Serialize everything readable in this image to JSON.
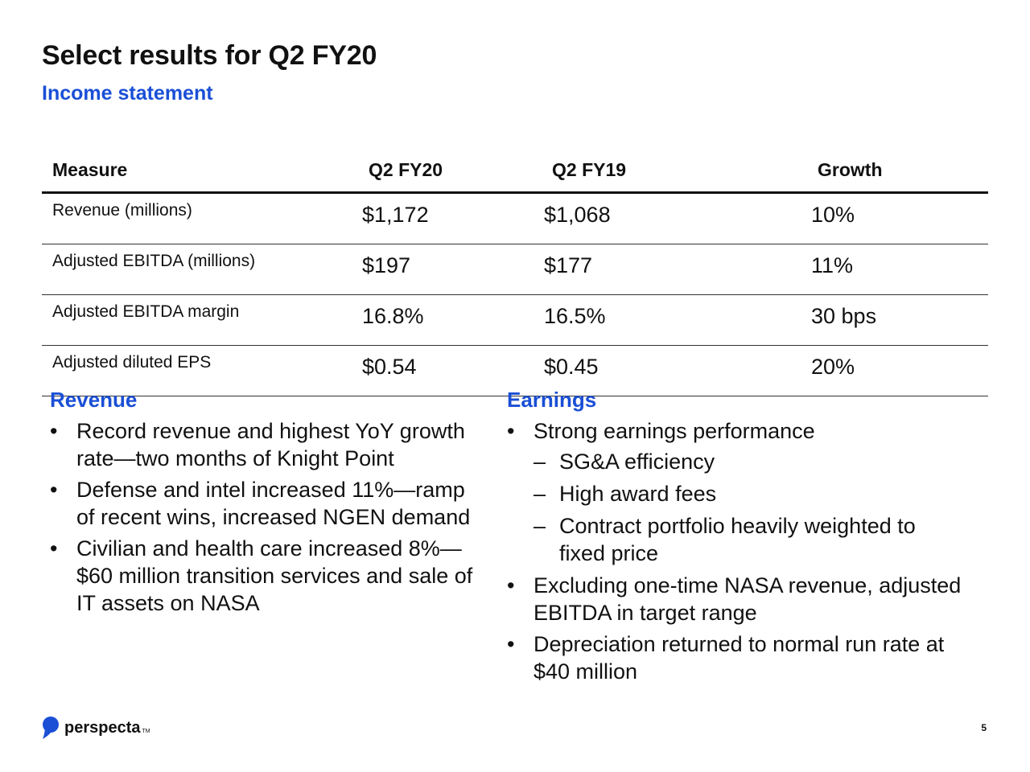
{
  "slide": {
    "title": "Select results for Q2 FY20",
    "subtitle": "Income statement",
    "page_number": "5"
  },
  "colors": {
    "accent_blue": "#1a4fd6",
    "text": "#111111"
  },
  "table": {
    "headers": [
      "Measure",
      "Q2 FY20",
      "Q2 FY19",
      "Growth"
    ],
    "rows": [
      [
        "Revenue (millions)",
        "$1,172",
        "$1,068",
        "10%"
      ],
      [
        "Adjusted EBITDA (millions)",
        "$197",
        "$177",
        "11%"
      ],
      [
        "Adjusted EBITDA margin",
        "16.8%",
        "16.5%",
        "30 bps"
      ],
      [
        "Adjusted diluted EPS",
        "$0.54",
        "$0.45",
        "20%"
      ]
    ]
  },
  "revenue": {
    "heading": "Revenue",
    "bullets": [
      "Record revenue and highest YoY growth rate—two months of Knight Point",
      "Defense and intel increased 11%—ramp of recent wins, increased NGEN demand",
      "Civilian and health care increased 8%—$60 million transition services and sale of IT assets on NASA"
    ]
  },
  "earnings": {
    "heading": "Earnings",
    "bullets": [
      {
        "text": "Strong earnings performance",
        "sub": [
          "SG&A efficiency",
          "High award fees",
          "Contract portfolio heavily weighted to fixed price"
        ]
      },
      {
        "text": "Excluding one-time NASA revenue, adjusted EBITDA in target range",
        "sub": []
      },
      {
        "text": "Depreciation returned to normal run rate at $40 million",
        "sub": []
      }
    ]
  },
  "footer": {
    "logo_text": "perspecta",
    "logo_tm": "TM",
    "logo_icon": "perspecta-logo-icon"
  }
}
